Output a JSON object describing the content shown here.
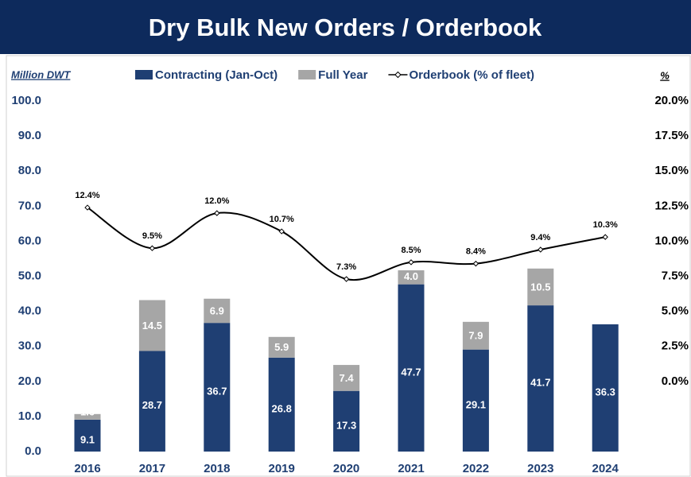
{
  "chart_data": {
    "type": "bar",
    "title": "Dry Bulk New Orders / Orderbook",
    "y_axis_label": "Million DWT",
    "y2_axis_label": "%",
    "categories": [
      "2016",
      "2017",
      "2018",
      "2019",
      "2020",
      "2021",
      "2022",
      "2023",
      "2024"
    ],
    "stacked": true,
    "series": [
      {
        "name": "Contracting (Jan-Oct)",
        "color": "#1f3f73",
        "values": [
          9.1,
          28.7,
          36.7,
          26.8,
          17.3,
          47.7,
          29.1,
          41.7,
          36.3
        ]
      },
      {
        "name": "Full Year",
        "color": "#a6a6a6",
        "values": [
          1.6,
          14.5,
          6.9,
          5.9,
          7.4,
          4.0,
          7.9,
          10.5,
          null
        ],
        "value_labels": [
          "1.6",
          "14.5",
          "6.9",
          "5.9",
          "7.4",
          "4.0",
          "7.9",
          "10.5",
          null
        ]
      },
      {
        "name": "Orderbook (% of fleet)",
        "color": "#000000",
        "type": "line",
        "axis": "y2",
        "values": [
          12.4,
          9.5,
          12.0,
          10.7,
          7.3,
          8.5,
          8.4,
          9.4,
          10.3
        ],
        "value_labels": [
          "12.4%",
          "9.5%",
          "12.0%",
          "10.7%",
          "7.3%",
          "8.5%",
          "8.4%",
          "9.4%",
          "10.3%"
        ]
      }
    ],
    "ylim": [
      0,
      100
    ],
    "yticks": [
      {
        "value": 0,
        "label": "0.0"
      },
      {
        "value": 10,
        "label": "10.0"
      },
      {
        "value": 20,
        "label": "20.0"
      },
      {
        "value": 30,
        "label": "30.0"
      },
      {
        "value": 40,
        "label": "40.0"
      },
      {
        "value": 50,
        "label": "50.0"
      },
      {
        "value": 60,
        "label": "60.0"
      },
      {
        "value": 70,
        "label": "70.0"
      },
      {
        "value": 80,
        "label": "80.0"
      },
      {
        "value": 90,
        "label": "90.0"
      },
      {
        "value": 100,
        "label": "100.0"
      }
    ],
    "y2lim": [
      -5,
      20
    ],
    "y2ticks": [
      {
        "value": 0,
        "label": "0.0%"
      },
      {
        "value": 2.5,
        "label": "2.5%"
      },
      {
        "value": 5,
        "label": "5.0%"
      },
      {
        "value": 7.5,
        "label": "7.5%"
      },
      {
        "value": 10,
        "label": "10.0%"
      },
      {
        "value": 12.5,
        "label": "12.5%"
      },
      {
        "value": 15,
        "label": "15.0%"
      },
      {
        "value": 17.5,
        "label": "17.5%"
      },
      {
        "value": 20,
        "label": "20.0%"
      }
    ],
    "legend": "top",
    "grid": false
  }
}
